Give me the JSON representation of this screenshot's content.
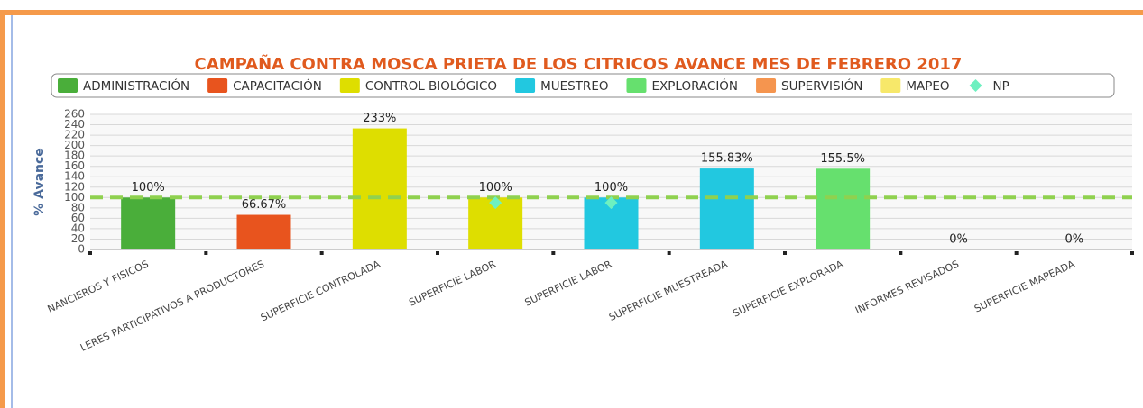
{
  "chart_data": {
    "type": "bar",
    "title": "CAMPAÑA CONTRA MOSCA PRIETA DE LOS CITRICOS AVANCE MES DE FEBRERO 2017",
    "y_label": "% Avance",
    "categories": [
      "NANCIEROS Y FISICOS",
      "LERES PARTICIPATIVOS A PRODUCTORES",
      "SUPERFICIE CONTROLADA",
      "SUPERFICIE LABOR",
      "SUPERFICIE LABOR",
      "SUPERFICIE MUESTREADA",
      "SUPERFICIE EXPLORADA",
      "INFORMES REVISADOS",
      "SUPERFICIE MAPEADA"
    ],
    "series": [
      {
        "name": "ADMINISTRACIÓN",
        "color": "#4aae3a",
        "type": "bar",
        "values": [
          100,
          null,
          null,
          null,
          null,
          null,
          null,
          null,
          null
        ],
        "value_labels": [
          "100%",
          null,
          null,
          null,
          null,
          null,
          null,
          null,
          null
        ]
      },
      {
        "name": "CAPACITACIÓN",
        "color": "#e8541e",
        "type": "bar",
        "values": [
          null,
          66.67,
          null,
          null,
          null,
          null,
          null,
          null,
          null
        ],
        "value_labels": [
          null,
          "66.67%",
          null,
          null,
          null,
          null,
          null,
          null,
          null
        ]
      },
      {
        "name": "CONTROL BIOLÓGICO",
        "color": "#dede00",
        "type": "bar",
        "values": [
          null,
          null,
          233,
          100,
          null,
          null,
          null,
          null,
          null
        ],
        "value_labels": [
          null,
          null,
          "233%",
          "100%",
          null,
          null,
          null,
          null,
          null
        ]
      },
      {
        "name": "MUESTREO",
        "color": "#22c8e0",
        "type": "bar",
        "values": [
          null,
          null,
          null,
          null,
          100,
          155.83,
          null,
          null,
          null
        ],
        "value_labels": [
          null,
          null,
          null,
          null,
          "100%",
          "155.83%",
          null,
          null,
          null
        ]
      },
      {
        "name": "EXPLORACIÓN",
        "color": "#66e06e",
        "type": "bar",
        "values": [
          null,
          null,
          null,
          null,
          null,
          null,
          155.5,
          null,
          null
        ],
        "value_labels": [
          null,
          null,
          null,
          null,
          null,
          null,
          "155.5%",
          null,
          null
        ]
      },
      {
        "name": "SUPERVISIÓN",
        "color": "#f5954f",
        "type": "bar",
        "values": [
          null,
          null,
          null,
          null,
          null,
          null,
          null,
          0,
          null
        ],
        "value_labels": [
          null,
          null,
          null,
          null,
          null,
          null,
          null,
          "0%",
          null
        ]
      },
      {
        "name": "MAPEO",
        "color": "#f7e86a",
        "type": "bar",
        "values": [
          null,
          null,
          null,
          null,
          null,
          null,
          null,
          null,
          0
        ],
        "value_labels": [
          null,
          null,
          null,
          null,
          null,
          null,
          null,
          null,
          "0%"
        ]
      },
      {
        "name": "NP",
        "color": "#6ef0c0",
        "type": "scatter",
        "values": [
          null,
          null,
          null,
          90,
          90,
          null,
          null,
          null,
          null
        ]
      }
    ],
    "reference_line": {
      "value": 100,
      "color": "#8fd14f"
    },
    "ylim": [
      0,
      260
    ],
    "yticks": [
      0,
      20,
      40,
      60,
      80,
      100,
      120,
      140,
      160,
      180,
      200,
      220,
      240,
      260
    ],
    "grid": true
  }
}
